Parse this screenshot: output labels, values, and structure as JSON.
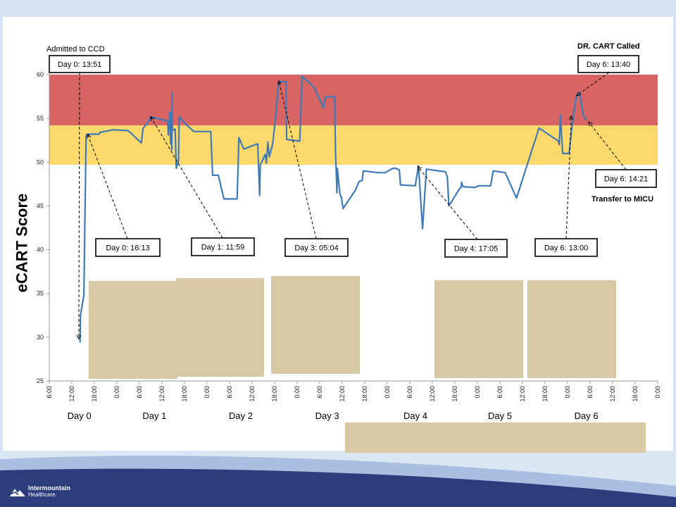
{
  "brand": {
    "logo_line1": "Intermountain",
    "logo_line2": "Healthcare",
    "top_band_color": "#d7e4f4",
    "footer_color": "#2b3d7d"
  },
  "chart_data": {
    "type": "line",
    "title": "",
    "ylabel": "eCART Score",
    "ylim": [
      25,
      60
    ],
    "y_ticks": [
      25,
      30,
      35,
      40,
      45,
      50,
      55,
      60
    ],
    "x_range_hours": [
      6,
      168
    ],
    "x_tick_labels": [
      "6:00",
      "12:00",
      "18:00",
      "0:00",
      "6:00",
      "12:00",
      "18:00",
      "0:00",
      "6:00",
      "12:00",
      "18:00",
      "0:00",
      "6:00",
      "12:00",
      "18:00",
      "0:00",
      "6:00",
      "12:00",
      "18:00",
      "0:00",
      "6:00",
      "12:00",
      "18:00",
      "0:00",
      "6:00",
      "12:00",
      "18:00",
      "0:00"
    ],
    "day_labels": [
      {
        "label": "Day 0",
        "hour": 14
      },
      {
        "label": "Day 1",
        "hour": 34
      },
      {
        "label": "Day 2",
        "hour": 57
      },
      {
        "label": "Day 3",
        "hour": 80
      },
      {
        "label": "Day 4",
        "hour": 103.5
      },
      {
        "label": "Day 5",
        "hour": 126
      },
      {
        "label": "Day 6",
        "hour": 149
      }
    ],
    "bands": [
      {
        "from": 54.2,
        "to": 60,
        "color": "#d86464"
      },
      {
        "from": 49.7,
        "to": 54.2,
        "color": "#fdd86b"
      }
    ],
    "series": [
      {
        "color": "#3f7ab8",
        "points": [
          [
            14.2,
            29.4
          ],
          [
            14.3,
            32.5
          ],
          [
            15.2,
            34.8
          ],
          [
            15.8,
            53.1
          ],
          [
            16.2,
            53.2
          ],
          [
            19.3,
            53.2
          ],
          [
            19.5,
            53.4
          ],
          [
            23,
            53.7
          ],
          [
            27,
            53.6
          ],
          [
            30.5,
            52.2
          ],
          [
            31,
            53.9
          ],
          [
            32,
            54.4
          ],
          [
            33,
            55.2
          ],
          [
            37.5,
            54.7
          ],
          [
            37.7,
            53.1
          ],
          [
            38.1,
            55.7
          ],
          [
            38.3,
            52.1
          ],
          [
            38.5,
            55.8
          ],
          [
            38.6,
            51.4
          ],
          [
            38.7,
            58.0
          ],
          [
            38.8,
            53.6
          ],
          [
            39.5,
            53.8
          ],
          [
            39.8,
            49.3
          ],
          [
            40.4,
            50.1
          ],
          [
            40.6,
            55.2
          ],
          [
            42.2,
            54.4
          ],
          [
            44.5,
            53.5
          ],
          [
            49,
            53.5
          ],
          [
            49.5,
            48.5
          ],
          [
            51,
            48.5
          ],
          [
            52.5,
            45.8
          ],
          [
            56,
            45.8
          ],
          [
            56.5,
            52.8
          ],
          [
            57.8,
            51.5
          ],
          [
            61.5,
            52.1
          ],
          [
            62,
            46.2
          ],
          [
            62.2,
            49.7
          ],
          [
            63.5,
            50.9
          ],
          [
            63.8,
            49.9
          ],
          [
            64.2,
            52.3
          ],
          [
            64.6,
            50.6
          ],
          [
            65.5,
            52.1
          ],
          [
            66.3,
            55.3
          ],
          [
            67,
            58.6
          ],
          [
            67.2,
            59.2
          ],
          [
            69,
            59.2
          ],
          [
            69.2,
            52.6
          ],
          [
            72.7,
            52.4
          ],
          [
            73.3,
            59.8
          ],
          [
            76.5,
            58.6
          ],
          [
            79,
            56.2
          ],
          [
            79.5,
            57.5
          ],
          [
            82,
            57.5
          ],
          [
            82.2,
            51.4
          ],
          [
            82.6,
            46.5
          ],
          [
            82.7,
            49.3
          ],
          [
            83.4,
            46.3
          ],
          [
            83.8,
            46.0
          ],
          [
            84.2,
            44.7
          ],
          [
            87.5,
            46.8
          ],
          [
            88.5,
            47.8
          ],
          [
            89.3,
            47.9
          ],
          [
            89.6,
            49.0
          ],
          [
            93.7,
            48.8
          ],
          [
            95.4,
            48.8
          ],
          [
            97.5,
            49.3
          ],
          [
            98.3,
            49.3
          ],
          [
            99.2,
            49.1
          ],
          [
            99.5,
            47.4
          ],
          [
            103.5,
            47.3
          ],
          [
            103.6,
            47.7
          ],
          [
            104.3,
            49.6
          ],
          [
            105.4,
            42.4
          ],
          [
            106.4,
            49.2
          ],
          [
            111.5,
            48.9
          ],
          [
            112,
            48.3
          ],
          [
            112.4,
            45.0
          ],
          [
            115,
            46.8
          ],
          [
            115.7,
            47.2
          ],
          [
            115.8,
            47.7
          ],
          [
            116.1,
            47.2
          ],
          [
            119.3,
            47.1
          ],
          [
            120.3,
            47.3
          ],
          [
            123.5,
            47.3
          ],
          [
            124.2,
            49.0
          ],
          [
            127.4,
            48.8
          ],
          [
            130.4,
            45.9
          ],
          [
            136.4,
            53.9
          ],
          [
            141.6,
            52.4
          ],
          [
            141.8,
            52.0
          ],
          [
            142.1,
            55.4
          ],
          [
            142.7,
            51.0
          ],
          [
            144.4,
            51.0
          ],
          [
            145.2,
            54.1
          ],
          [
            146,
            56.6
          ],
          [
            146.4,
            57.6
          ],
          [
            147.2,
            58.0
          ],
          [
            148.2,
            55.3
          ],
          [
            149.1,
            54.8
          ]
        ]
      }
    ],
    "annotations": [
      {
        "box": "Day 0: 13:51",
        "note": "Admitted to CCD",
        "hour": 13.85,
        "value": 29.8
      },
      {
        "box": "Day 0: 16:13",
        "hour": 16.2,
        "value": 53.2
      },
      {
        "box": "Day 1: 11:59",
        "hour": 33.0,
        "value": 55.2
      },
      {
        "box": "Day 3: 05:04",
        "hour": 67.1,
        "value": 59.3
      },
      {
        "box": "Day 4: 17:05",
        "hour": 104.1,
        "value": 49.5
      },
      {
        "box": "Day 6: 13:00",
        "hour": 145.0,
        "value": 55.3
      },
      {
        "box": "Day 6: 13:40",
        "note": "DR. CART Called",
        "hour": 146.4,
        "value": 57.6
      },
      {
        "box": "Day 6: 14:21",
        "note": "Transfer to MICU",
        "hour": 149.6,
        "value": 54.6
      }
    ],
    "grid": false,
    "legend": "none"
  }
}
